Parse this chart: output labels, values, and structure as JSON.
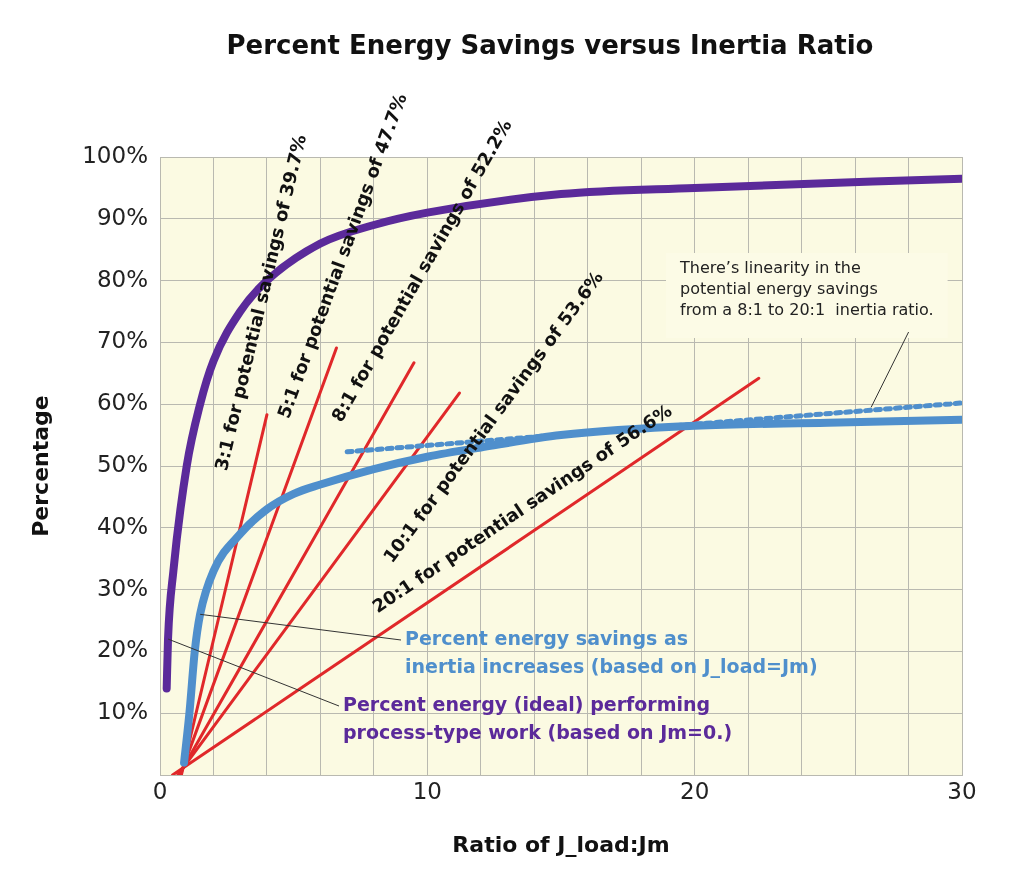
{
  "chart_data": {
    "type": "line",
    "title": "Percent Energy Savings versus Inertia Ratio",
    "xlabel": "Ratio of J_load:Jm",
    "ylabel": "Percentage",
    "xlim": [
      0,
      30
    ],
    "ylim": [
      0,
      100
    ],
    "xticks": [
      0,
      {
        "value": 2,
        "label": null
      },
      {
        "value": 4,
        "label": null
      },
      {
        "value": 6,
        "label": null
      },
      {
        "value": 8,
        "label": null
      },
      10,
      {
        "value": 12,
        "label": null
      },
      {
        "value": 14,
        "label": null
      },
      {
        "value": 16,
        "label": null
      },
      {
        "value": 18,
        "label": null
      },
      20,
      {
        "value": 22,
        "label": null
      },
      {
        "value": 24,
        "label": null
      },
      {
        "value": 26,
        "label": null
      },
      {
        "value": 28,
        "label": null
      },
      30
    ],
    "yticks": [
      {
        "value": 0,
        "label": null
      },
      {
        "value": 10,
        "label": "10%"
      },
      {
        "value": 20,
        "label": "20%"
      },
      {
        "value": 30,
        "label": "30%"
      },
      {
        "value": 40,
        "label": "40%"
      },
      {
        "value": 50,
        "label": "50%"
      },
      {
        "value": 60,
        "label": "60%"
      },
      {
        "value": 70,
        "label": "70%"
      },
      {
        "value": 80,
        "label": "80%"
      },
      {
        "value": 90,
        "label": "90%"
      },
      {
        "value": 100,
        "label": "100%"
      }
    ],
    "grid": true,
    "legend": false,
    "marker": "none",
    "series": [
      {
        "name": "Percent energy (ideal) performing\nprocess-type work (based on Jm=0.)",
        "color": "#5b2a9a",
        "x": [
          0.25,
          0.3,
          0.5,
          1,
          1.5,
          2,
          3,
          4,
          6,
          8,
          10,
          15,
          20,
          30
        ],
        "values": [
          14,
          22,
          33,
          50,
          60,
          67,
          75,
          80,
          86,
          89,
          91,
          94,
          95,
          96.5
        ]
      },
      {
        "name": "Percent energy savings as\ninertia increases (based on J_load=Jm)",
        "color": "#4f8fcc",
        "x": [
          0.9,
          1.1,
          1.3,
          1.5,
          2,
          3,
          4,
          5,
          6,
          8,
          10,
          12,
          15,
          20,
          25,
          30
        ],
        "values": [
          2,
          10,
          20,
          26,
          33,
          39,
          43,
          45.5,
          47,
          49.5,
          51.5,
          53,
          55,
          56.5,
          57,
          57.5
        ]
      },
      {
        "color": "#4f8fcc",
        "line_style": "dashed",
        "x": [
          7,
          30
        ],
        "values": [
          52.3,
          60.2
        ]
      },
      {
        "color": "#e0282a",
        "x": [
          0.8,
          4
        ],
        "values": [
          0,
          58.3
        ]
      },
      {
        "color": "#e0282a",
        "x": [
          0.76,
          6.6
        ],
        "values": [
          0,
          69.1
        ]
      },
      {
        "color": "#e0282a",
        "x": [
          0.71,
          9.5
        ],
        "values": [
          0,
          66.7
        ]
      },
      {
        "color": "#e0282a",
        "x": [
          0.67,
          11.2
        ],
        "values": [
          0,
          61.8
        ]
      },
      {
        "color": "#e0282a",
        "x": [
          0.47,
          13.7,
          22.4
        ],
        "values": [
          0,
          38.7,
          64.2
        ]
      }
    ],
    "annotations": [
      {
        "text": "3:1 for potential savings of 39.7%",
        "x": 4,
        "y": 58.3
      },
      {
        "text": "5:1 for potential savings of 47.7%",
        "x": 6.6,
        "y": 69.1
      },
      {
        "text": "8:1 for potential savings of 52.2%",
        "x": 9.5,
        "y": 66.7
      },
      {
        "text": "10:1 for potential savings of 53.6%",
        "x": 11.2,
        "y": 61.8
      },
      {
        "text": "20:1 for potential savings of 56.6%",
        "x": 13.7,
        "y": 38.7
      },
      {
        "text": "There’s linearity in the\npotential energy savings\nfrom a 8:1 to 20:1  inertia ratio.",
        "x": 26.6,
        "y": 59
      }
    ]
  }
}
